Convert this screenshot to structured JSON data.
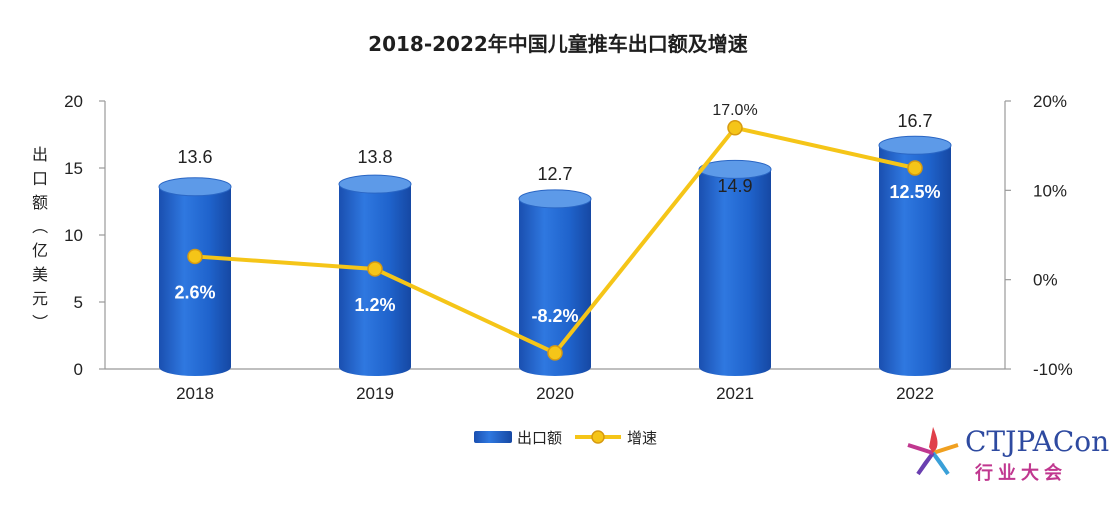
{
  "chart_data": {
    "type": "bar",
    "title": "2018-2022年中国儿童推车出口额及增速",
    "categories": [
      "2018",
      "2019",
      "2020",
      "2021",
      "2022"
    ],
    "series": [
      {
        "name": "出口额",
        "kind": "bar",
        "axis": "left",
        "values": [
          13.6,
          13.8,
          12.7,
          14.9,
          16.7
        ],
        "labels": [
          "13.6",
          "13.8",
          "12.7",
          "14.9",
          "16.7"
        ],
        "color": "#1e62c8"
      },
      {
        "name": "增速",
        "kind": "line",
        "axis": "right",
        "values": [
          2.6,
          1.2,
          -8.2,
          17.0,
          12.5
        ],
        "labels": [
          "2.6%",
          "1.2%",
          "-8.2%",
          "17.0%",
          "12.5%"
        ],
        "color": "#f5c518"
      }
    ],
    "ylabel": "出口额（亿美元）",
    "ylabel_chars": [
      "出",
      "口",
      "额",
      "（",
      "亿",
      "美",
      "元",
      "）"
    ],
    "y_left": {
      "min": 0,
      "max": 20,
      "ticks": [
        "0",
        "5",
        "10",
        "15",
        "20"
      ],
      "tick_values": [
        0,
        5,
        10,
        15,
        20
      ]
    },
    "y_right": {
      "min": -10,
      "max": 20,
      "ticks": [
        "-10%",
        "0%",
        "10%",
        "20%"
      ],
      "tick_values": [
        -10,
        0,
        10,
        20
      ]
    },
    "legend": {
      "position": "bottom-center",
      "items": [
        "出口额",
        "增速"
      ]
    },
    "grid": false
  },
  "watermark": {
    "brand": "CTJPACon",
    "subtitle": "行业大会"
  }
}
